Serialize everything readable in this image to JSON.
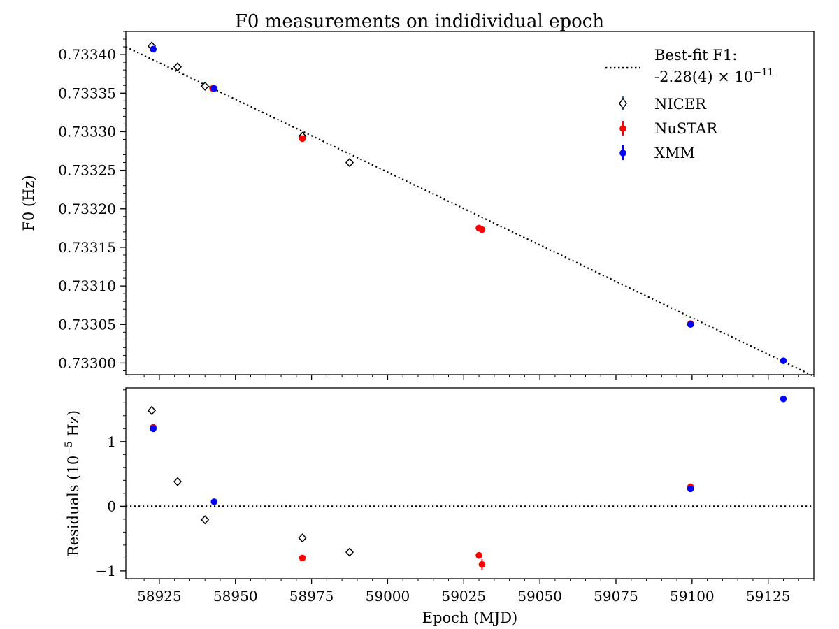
{
  "chart_data": [
    {
      "type": "scatter",
      "panel": "top",
      "title": "F0 measurements on indidividual epoch",
      "xlabel": "",
      "ylabel": "F0 (Hz)",
      "xlim": [
        58914,
        59140
      ],
      "ylim": [
        0.732985,
        0.73343
      ],
      "x_ticks": [
        58925,
        58950,
        58975,
        59000,
        59025,
        59050,
        59075,
        59100,
        59125
      ],
      "y_ticks": [
        0.733,
        0.73305,
        0.7331,
        0.73315,
        0.7332,
        0.73325,
        0.7333,
        0.73335,
        0.7334
      ],
      "y_tick_labels": [
        "0.73300",
        "0.73305",
        "0.73310",
        "0.73315",
        "0.73320",
        "0.73325",
        "0.73330",
        "0.73335",
        "0.73340"
      ],
      "fit_line": {
        "name": "Best-fit F1:",
        "name_line2": "-2.28(4) × 10",
        "name_exponent": "−11",
        "x": [
          58914,
          59140
        ],
        "y": [
          0.73341,
          0.732983
        ]
      },
      "series": [
        {
          "name": "NICER",
          "marker": "diamond-open",
          "color": "#000000",
          "x": [
            58922.5,
            58931,
            58940,
            58972,
            58987.5
          ],
          "y": [
            0.733411,
            0.733384,
            0.733359,
            0.733294,
            0.73326
          ]
        },
        {
          "name": "NuSTAR",
          "marker": "circle",
          "color": "#ff0000",
          "x": [
            58923,
            58942.5,
            58972,
            59030,
            59031,
            59099.5
          ],
          "y": [
            0.733407,
            0.733356,
            0.733291,
            0.733175,
            0.733173,
            0.733051
          ]
        },
        {
          "name": "XMM",
          "marker": "circle",
          "color": "#0000ff",
          "x": [
            58923,
            58943,
            59099.5,
            59130
          ],
          "y": [
            0.733407,
            0.733356,
            0.73305,
            0.733003
          ]
        }
      ],
      "legend_position": "top-right"
    },
    {
      "type": "scatter",
      "panel": "bottom",
      "xlabel": "Epoch (MJD)",
      "ylabel": "Residuals (10",
      "ylabel_exponent": "−5",
      "ylabel_suffix": " Hz)",
      "xlim": [
        58914,
        59140
      ],
      "ylim": [
        -1.12,
        1.83
      ],
      "x_ticks": [
        58925,
        58950,
        58975,
        59000,
        59025,
        59050,
        59075,
        59100,
        59125
      ],
      "x_tick_labels": [
        "58925",
        "58950",
        "58975",
        "59000",
        "59025",
        "59050",
        "59075",
        "59100",
        "59125"
      ],
      "y_ticks": [
        -1,
        0,
        1
      ],
      "y_tick_labels": [
        "−1",
        "0",
        "1"
      ],
      "reference_line": 0,
      "series": [
        {
          "name": "NICER",
          "marker": "diamond-open",
          "color": "#000000",
          "x": [
            58922.5,
            58931,
            58940,
            58972,
            58987.5
          ],
          "y": [
            1.48,
            0.38,
            -0.21,
            -0.49,
            -0.71
          ]
        },
        {
          "name": "NuSTAR",
          "marker": "circle",
          "color": "#ff0000",
          "x": [
            58923,
            58972,
            59030,
            59031,
            59099.5
          ],
          "y": [
            1.22,
            -0.8,
            -0.76,
            -0.9,
            0.3
          ]
        },
        {
          "name": "XMM",
          "marker": "circle",
          "color": "#0000ff",
          "x": [
            58923,
            58943,
            59099.5,
            59130
          ],
          "y": [
            1.2,
            0.07,
            0.27,
            1.66
          ]
        }
      ]
    }
  ]
}
